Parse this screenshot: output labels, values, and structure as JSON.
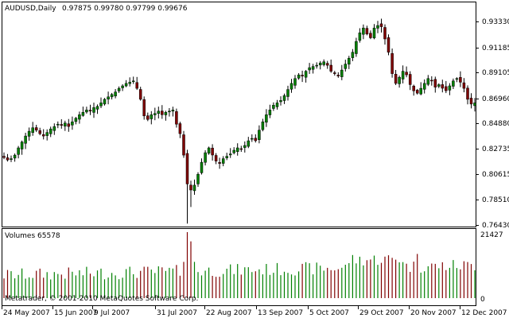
{
  "header": {
    "symbol_timeframe": "AUDUSD,Daily",
    "ohlc": "0.97875 0.99780 0.97799 0.99676"
  },
  "volume_panel": {
    "label": "Volumes 65578",
    "max_label": "21427",
    "zero_label": "0"
  },
  "copyright": "Metatrader, © 2001-2010 MetaQuotes Software Corp.",
  "colors": {
    "bull": "#008000",
    "bear": "#800000",
    "wick": "#000000",
    "frame": "#000000"
  },
  "chart_data": [
    {
      "type": "candlestick",
      "title": "AUDUSD,Daily",
      "y_ticks": [
        "0.93330",
        "0.91185",
        "0.89105",
        "0.86960",
        "0.84880",
        "0.82735",
        "0.80615",
        "0.78510",
        "0.76430"
      ],
      "ylim": [
        0.7643,
        0.9333
      ],
      "x_ticks": [
        "24 May 2007",
        "15 Jun 2007",
        "9 Jul 2007",
        "31 Jul 2007",
        "22 Aug 2007",
        "13 Sep 2007",
        "5 Oct 2007",
        "29 Oct 2007",
        "20 Nov 2007",
        "12 Dec 2007"
      ],
      "close_path": [
        0.82,
        0.818,
        0.819,
        0.822,
        0.828,
        0.833,
        0.838,
        0.842,
        0.845,
        0.843,
        0.84,
        0.838,
        0.841,
        0.844,
        0.846,
        0.848,
        0.847,
        0.849,
        0.846,
        0.85,
        0.853,
        0.856,
        0.858,
        0.86,
        0.859,
        0.862,
        0.863,
        0.866,
        0.869,
        0.871,
        0.873,
        0.875,
        0.878,
        0.88,
        0.882,
        0.883,
        0.884,
        0.878,
        0.869,
        0.855,
        0.852,
        0.856,
        0.857,
        0.859,
        0.856,
        0.858,
        0.859,
        0.86,
        0.848,
        0.84,
        0.822,
        0.798,
        0.793,
        0.797,
        0.806,
        0.816,
        0.824,
        0.828,
        0.822,
        0.817,
        0.815,
        0.819,
        0.821,
        0.823,
        0.826,
        0.828,
        0.827,
        0.83,
        0.834,
        0.836,
        0.834,
        0.843,
        0.85,
        0.856,
        0.86,
        0.864,
        0.866,
        0.868,
        0.872,
        0.877,
        0.882,
        0.886,
        0.889,
        0.888,
        0.892,
        0.895,
        0.896,
        0.897,
        0.899,
        0.9,
        0.897,
        0.892,
        0.89,
        0.888,
        0.893,
        0.898,
        0.903,
        0.908,
        0.917,
        0.924,
        0.928,
        0.923,
        0.92,
        0.928,
        0.93,
        0.929,
        0.919,
        0.908,
        0.89,
        0.882,
        0.887,
        0.892,
        0.889,
        0.881,
        0.876,
        0.874,
        0.878,
        0.882,
        0.886,
        0.884,
        0.879,
        0.881,
        0.878,
        0.876,
        0.88,
        0.884,
        0.886,
        0.883,
        0.878,
        0.869,
        0.865,
        0.866
      ]
    },
    {
      "type": "bar",
      "title": "Volumes 65578",
      "ylim": [
        0,
        21427
      ],
      "colored_by": "candle direction"
    }
  ]
}
